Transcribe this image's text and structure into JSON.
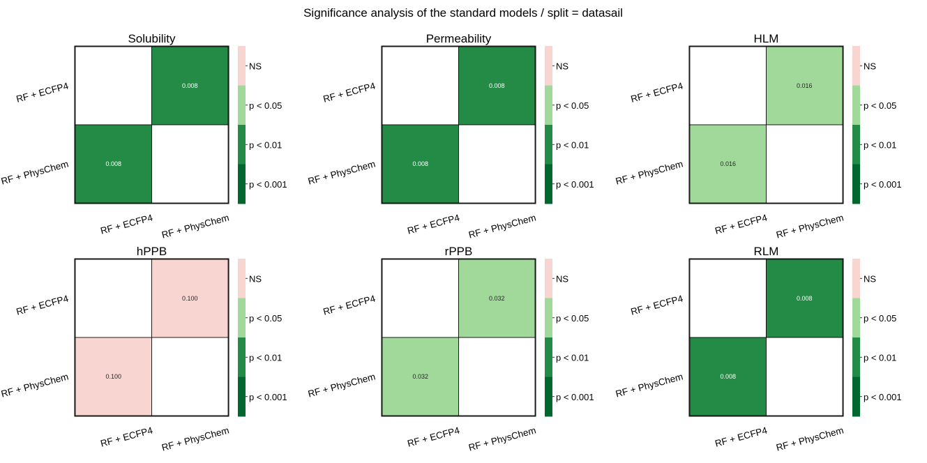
{
  "suptitle": "Significance analysis of the standard models / split = datasail",
  "colors": {
    "ns": "#f8d5d1",
    "p005": "#a1d99b",
    "p001": "#238b45",
    "p0001": "#00682f",
    "cell_border": "#000000",
    "diagonal": "#ffffff"
  },
  "colorbar": {
    "labels": [
      "NS",
      "p < 0.05",
      "p < 0.01",
      "p < 0.001"
    ]
  },
  "chart_data": [
    {
      "type": "heatmap",
      "title": "Solubility",
      "x_labels": [
        "RF + ECFP4",
        "RF + PhysChem"
      ],
      "y_labels": [
        "RF + ECFP4",
        "RF + PhysChem"
      ],
      "matrix": [
        [
          null,
          0.008
        ],
        [
          0.008,
          null
        ]
      ]
    },
    {
      "type": "heatmap",
      "title": "Permeability",
      "x_labels": [
        "RF + ECFP4",
        "RF + PhysChem"
      ],
      "y_labels": [
        "RF + ECFP4",
        "RF + PhysChem"
      ],
      "matrix": [
        [
          null,
          0.008
        ],
        [
          0.008,
          null
        ]
      ]
    },
    {
      "type": "heatmap",
      "title": "HLM",
      "x_labels": [
        "RF + ECFP4",
        "RF + PhysChem"
      ],
      "y_labels": [
        "RF + ECFP4",
        "RF + PhysChem"
      ],
      "matrix": [
        [
          null,
          0.016
        ],
        [
          0.016,
          null
        ]
      ]
    },
    {
      "type": "heatmap",
      "title": "hPPB",
      "x_labels": [
        "RF + ECFP4",
        "RF + PhysChem"
      ],
      "y_labels": [
        "RF + ECFP4",
        "RF + PhysChem"
      ],
      "matrix": [
        [
          null,
          0.1
        ],
        [
          0.1,
          null
        ]
      ]
    },
    {
      "type": "heatmap",
      "title": "rPPB",
      "x_labels": [
        "RF + ECFP4",
        "RF + PhysChem"
      ],
      "y_labels": [
        "RF + ECFP4",
        "RF + PhysChem"
      ],
      "matrix": [
        [
          null,
          0.032
        ],
        [
          0.032,
          null
        ]
      ]
    },
    {
      "type": "heatmap",
      "title": "RLM",
      "x_labels": [
        "RF + ECFP4",
        "RF + PhysChem"
      ],
      "y_labels": [
        "RF + ECFP4",
        "RF + PhysChem"
      ],
      "matrix": [
        [
          null,
          0.008
        ],
        [
          0.008,
          null
        ]
      ]
    }
  ]
}
